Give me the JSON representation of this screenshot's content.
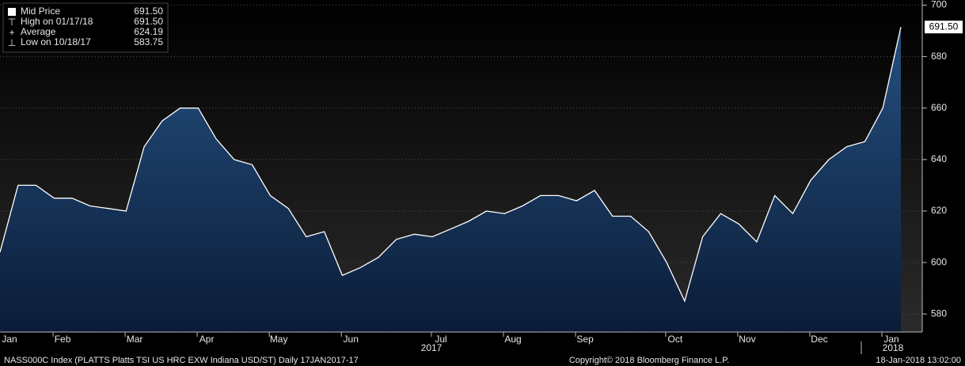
{
  "chart_data": {
    "type": "area",
    "categories": [
      null,
      "Jan",
      null,
      null,
      "Feb",
      null,
      null,
      null,
      "Mar",
      null,
      null,
      null,
      "Apr",
      null,
      null,
      null,
      "May",
      null,
      null,
      null,
      "Jun",
      null,
      null,
      null,
      null,
      "Jul",
      null,
      null,
      null,
      "Aug",
      null,
      null,
      null,
      "Sep",
      null,
      null,
      null,
      null,
      "Oct",
      null,
      null,
      null,
      "Nov",
      null,
      null,
      null,
      "Dec",
      null,
      null,
      null,
      "Jan"
    ],
    "years": [
      "2017",
      "2018"
    ],
    "series": [
      {
        "name": "Mid Price",
        "color": "#ffffff",
        "values": [
          604,
          630,
          630,
          625,
          625,
          622,
          621,
          620,
          645,
          655,
          660,
          660,
          648,
          640,
          638,
          626,
          621,
          610,
          612,
          595,
          598,
          602,
          609,
          611,
          610,
          613,
          616,
          620,
          619,
          622,
          626,
          626,
          624,
          628,
          618,
          618,
          612,
          600,
          585,
          610,
          619,
          615,
          608,
          626,
          619,
          632,
          640,
          645,
          647,
          660,
          691.5
        ]
      }
    ],
    "ylim": [
      573,
      702
    ],
    "yticks": [
      580,
      600,
      620,
      640,
      660,
      680,
      700
    ],
    "last_label": "691.50",
    "legend": [
      {
        "label": "Mid Price",
        "value": "691.50"
      },
      {
        "label": "High on 01/17/18",
        "value": "691.50"
      },
      {
        "label": "Average",
        "value": "624.19"
      },
      {
        "label": "Low on 10/18/17",
        "value": "583.75"
      }
    ],
    "footer_left": "NASS000C Index (PLATTS Platts TSI US HRC EXW Indiana USD/ST)  Daily 17JAN2017-17",
    "footer_center": "Copyright© 2018 Bloomberg Finance L.P.",
    "footer_right": "18-Jan-2018 13:02:00"
  }
}
